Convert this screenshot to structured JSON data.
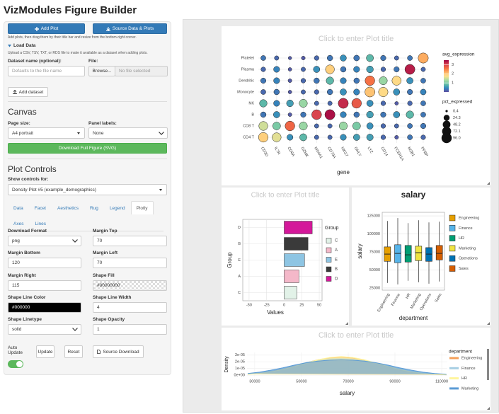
{
  "header": {
    "title": "VizModules Figure Builder"
  },
  "sidebar": {
    "add_plot": "Add Plot",
    "source_data": "Source Data & Plots",
    "hint": "Add plots, then drag them by their title bar and resize from the bottom-right corner.",
    "load_data": {
      "title": "Load Data",
      "hint": "Upload a CSV, TSV, TXT, or RDS file to make it available as a dataset when adding plots.",
      "dataset_label": "Dataset name (optional):",
      "dataset_placeholder": "Defaults to the file name",
      "file_label": "File:",
      "browse": "Browse...",
      "file_status": "No file selected",
      "add_button": "Add dataset"
    },
    "canvas": {
      "title": "Canvas",
      "page_size_label": "Page size:",
      "page_size": "A4 portrait",
      "panel_labels_label": "Panel labels:",
      "panel_labels": "None",
      "download": "Download Full Figure (SVG)"
    },
    "plot_controls": {
      "title": "Plot Controls",
      "show_label": "Show controls for:",
      "selected": "Density Plot #5 (example_demographics)",
      "tabs": [
        "Data",
        "Facet",
        "Aesthetics",
        "Rug",
        "Legend",
        "Plotly",
        "Axes",
        "Lines"
      ],
      "active_tab": 5,
      "fields": [
        {
          "label": "Download Format",
          "value": "png",
          "kind": "select"
        },
        {
          "label": "Margin Top",
          "value": 70,
          "kind": "text"
        },
        {
          "label": "Margin Bottom",
          "value": 120,
          "kind": "text"
        },
        {
          "label": "Margin Left",
          "value": 70,
          "kind": "text"
        },
        {
          "label": "Margin Right",
          "value": 115,
          "kind": "text"
        },
        {
          "label": "Shape Fill",
          "value": "#00000000",
          "kind": "color"
        },
        {
          "label": "Shape Line Color",
          "value": "#000000",
          "kind": "color"
        },
        {
          "label": "Shape Line Width",
          "value": 4,
          "kind": "text"
        },
        {
          "label": "Shape Linetype",
          "value": "solid",
          "kind": "select"
        },
        {
          "label": "Shape Opacity",
          "value": 1,
          "kind": "text"
        }
      ]
    },
    "footer": {
      "auto_update": "Auto Update",
      "update": "Update",
      "reset": "Reset",
      "source_download": "Source Download"
    }
  },
  "charts": [
    {
      "type": "dot",
      "title": "Click to enter Plot title",
      "x_label": "gene",
      "categories": [
        "CD3D",
        "IL7R",
        "CD8A",
        "GZMK",
        "MS4A1",
        "CD79A",
        "NKG7",
        "GNLY",
        "LYZ",
        "CD14",
        "FCER1A",
        "MZB1",
        "PPBP"
      ],
      "rows": [
        "Platelet",
        "Plasma",
        "Dendritic",
        "Monocyte",
        "NK",
        "B",
        "CD8 T",
        "CD4 T"
      ],
      "values": [
        [
          0.3,
          0.2,
          0.1,
          0.1,
          0.2,
          0.3,
          0.5,
          0.3,
          0.8,
          0.3,
          0.2,
          0.3,
          2.2
        ],
        [
          0.2,
          0.4,
          0.1,
          0.2,
          0.5,
          1.9,
          0.3,
          0.4,
          0.6,
          0.2,
          0.3,
          3.3,
          0.2
        ],
        [
          0.3,
          0.4,
          0.1,
          0.2,
          0.3,
          0.8,
          0.4,
          0.3,
          2.6,
          1.2,
          1.8,
          0.5,
          0.3
        ],
        [
          0.2,
          0.3,
          0.1,
          0.2,
          0.2,
          0.3,
          0.5,
          0.4,
          2.0,
          1.8,
          0.5,
          0.3,
          0.4
        ],
        [
          0.8,
          0.4,
          0.6,
          1.2,
          0.2,
          0.2,
          3.2,
          2.8,
          0.5,
          0.2,
          0.1,
          0.2,
          0.3
        ],
        [
          0.3,
          0.5,
          0.1,
          0.3,
          3.0,
          3.4,
          0.4,
          0.3,
          0.6,
          0.3,
          0.5,
          0.8,
          0.3
        ],
        [
          1.5,
          1.0,
          2.7,
          1.2,
          0.2,
          0.2,
          1.2,
          1.0,
          0.5,
          0.2,
          0.2,
          0.3,
          0.3
        ],
        [
          1.9,
          1.6,
          0.5,
          0.8,
          0.2,
          0.2,
          0.5,
          0.6,
          0.6,
          0.2,
          0.1,
          0.3,
          0.2
        ]
      ],
      "sizes": [
        [
          15,
          10,
          4,
          6,
          12,
          20,
          28,
          22,
          40,
          18,
          10,
          15,
          96
        ],
        [
          12,
          25,
          5,
          10,
          30,
          70,
          20,
          25,
          35,
          12,
          18,
          92,
          10
        ],
        [
          18,
          25,
          6,
          12,
          20,
          45,
          25,
          20,
          85,
          55,
          75,
          30,
          15
        ],
        [
          15,
          20,
          5,
          10,
          12,
          20,
          30,
          25,
          92,
          80,
          30,
          18,
          22
        ],
        [
          45,
          25,
          35,
          55,
          10,
          10,
          94,
          85,
          30,
          12,
          5,
          12,
          15
        ],
        [
          20,
          30,
          6,
          18,
          88,
          95,
          25,
          20,
          35,
          18,
          30,
          45,
          15
        ],
        [
          70,
          50,
          85,
          55,
          10,
          10,
          55,
          50,
          30,
          12,
          10,
          15,
          18
        ],
        [
          85,
          72,
          25,
          40,
          10,
          10,
          25,
          30,
          32,
          12,
          6,
          15,
          12
        ]
      ],
      "color_label": "avg_expression",
      "clim": [
        0,
        3.5
      ],
      "cticks": [
        1,
        2,
        3
      ],
      "colorscale": [
        "#5e4fa2",
        "#3288bd",
        "#66c2a5",
        "#abdda4",
        "#fee08b",
        "#fdae61",
        "#f46d43",
        "#d53e4f",
        "#9e0142"
      ],
      "size_label": "pct_expressed",
      "slim": [
        0,
        96
      ],
      "size_ticks": [
        0.4,
        24.3,
        48.2,
        72.1,
        {
          "value": 96,
          "label": "96.0"
        }
      ],
      "grid": true
    },
    {
      "type": "bar",
      "title": "Click to enter Plot title",
      "x_label": "Values",
      "y_label": "Group",
      "legend_title": "Group",
      "categories": [
        "C",
        "A",
        "E",
        "B",
        "D"
      ],
      "values": [
        18,
        21,
        29,
        34,
        40
      ],
      "colors": [
        "#e2f2e8",
        "#f4b8c9",
        "#8ec5e3",
        "#3a3a3a",
        "#d4189a"
      ],
      "xlim": [
        -59,
        54
      ],
      "xticks": [
        -50,
        -25,
        0,
        25,
        50
      ],
      "grid": true
    },
    {
      "type": "box",
      "title": "salary",
      "x_label": "department",
      "y_label": "salary",
      "categories": [
        "Engineering",
        "Finance",
        "HR",
        "Marketing",
        "Operations",
        "Sales"
      ],
      "colors": [
        "#E69F00",
        "#56B4E9",
        "#009E73",
        "#F0E442",
        "#0072B2",
        "#D55E00"
      ],
      "stats": [
        [
          32000,
          62000,
          72000,
          82000,
          118000
        ],
        [
          30000,
          60000,
          73000,
          85000,
          122000
        ],
        [
          35000,
          61000,
          71000,
          84000,
          115000
        ],
        [
          33000,
          63000,
          74000,
          83000,
          119000
        ],
        [
          31000,
          62000,
          72000,
          81000,
          116000
        ],
        [
          34000,
          64000,
          73000,
          84000,
          117000
        ]
      ],
      "ylim": [
        22000,
        130000
      ],
      "yticks": [
        25000,
        50000,
        75000,
        100000,
        125000
      ],
      "grid": true
    },
    {
      "type": "density",
      "title": "Click to enter Plot title",
      "x_label": "salary",
      "y_label": "Density",
      "legend_title": "department",
      "x": [
        27000,
        32000,
        37000,
        42000,
        47000,
        52000,
        57000,
        62000,
        67000,
        72000,
        77000,
        82000,
        87000,
        92000,
        97000,
        102000,
        107000,
        112000
      ],
      "series": [
        {
          "name": "Engineering",
          "color": "#f5a05a",
          "values": [
            1.5e-06,
            3e-06,
            5.5e-06,
            9e-06,
            1.35e-05,
            1.85e-05,
            2.3e-05,
            2.6e-05,
            2.7e-05,
            2.55e-05,
            2.2e-05,
            1.75e-05,
            1.25e-05,
            8e-06,
            4.5e-06,
            2.5e-06,
            1.2e-06,
            5e-07
          ]
        },
        {
          "name": "Finance",
          "color": "#a6cee3",
          "values": [
            2e-06,
            3.8e-06,
            6.5e-06,
            1e-05,
            1.45e-05,
            1.9e-05,
            2.25e-05,
            2.45e-05,
            2.5e-05,
            2.4e-05,
            2.15e-05,
            1.8e-05,
            1.4e-05,
            1e-05,
            6.5e-06,
            3.8e-06,
            2e-06,
            1e-06
          ]
        },
        {
          "name": "HR",
          "color": "#fff59d",
          "values": [
            1.2e-06,
            2.5e-06,
            5e-06,
            8.5e-06,
            1.3e-05,
            1.8e-05,
            2.3e-05,
            2.65e-05,
            2.8e-05,
            2.65e-05,
            2.3e-05,
            1.8e-05,
            1.3e-05,
            8.5e-06,
            5e-06,
            2.5e-06,
            1.2e-06,
            5e-07
          ]
        },
        {
          "name": "Marketing",
          "color": "#5b9bd5",
          "values": [
            2.5e-06,
            4.5e-06,
            7.5e-06,
            1.1e-05,
            1.5e-05,
            1.85e-05,
            2.1e-05,
            2.25e-05,
            2.3e-05,
            2.25e-05,
            2.1e-05,
            1.85e-05,
            1.5e-05,
            1.1e-05,
            7.5e-06,
            4.5e-06,
            2.5e-06,
            1.2e-06
          ]
        }
      ],
      "xlim": [
        26700,
        112400
      ],
      "xticks": [
        30000,
        50000,
        70000,
        90000,
        110000
      ],
      "ylim": [
        -2e-06,
        3.4e-05
      ],
      "yticks": [
        {
          "value": 0,
          "label": "0e+00"
        },
        {
          "value": 1e-05,
          "label": "1e-05"
        },
        {
          "value": 2e-05,
          "label": "2e-05"
        },
        {
          "value": 3e-05,
          "label": "3e-05"
        }
      ],
      "grid": true
    }
  ]
}
